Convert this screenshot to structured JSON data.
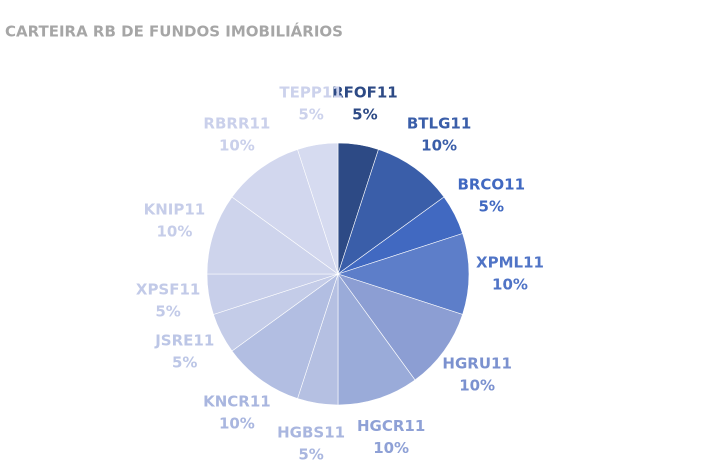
{
  "chart_data": {
    "type": "pie",
    "title": "CARTEIRA RB DE FUNDOS IMOBILIÁRIOS",
    "categories": [
      "RFOF11",
      "BTLG11",
      "BRCO11",
      "XPML11",
      "HGRU11",
      "HGCR11",
      "HGBS11",
      "KNCR11",
      "JSRE11",
      "XPSF11",
      "KNIP11",
      "RBRR11",
      "TEPP11"
    ],
    "values": [
      5,
      10,
      5,
      10,
      10,
      10,
      5,
      10,
      5,
      5,
      10,
      10,
      5
    ],
    "value_labels": [
      "5%",
      "10%",
      "5%",
      "10%",
      "10%",
      "10%",
      "5%",
      "10%",
      "5%",
      "5%",
      "10%",
      "10%",
      "5%"
    ],
    "colors": [
      "#2d4a85",
      "#3a5ea9",
      "#4169c1",
      "#5d7ec9",
      "#8c9ed3",
      "#9aabd9",
      "#b5c0e2",
      "#b2bee2",
      "#c4cce8",
      "#c8cfea",
      "#ced4ec",
      "#d2d7ee",
      "#d6dbf0"
    ],
    "label_colors": [
      "#2d4a85",
      "#3a5ea9",
      "#4169c1",
      "#5074c6",
      "#7b91cf",
      "#8fa1d6",
      "#a9b6df",
      "#a9b6df",
      "#bcc6e6",
      "#c2cae8",
      "#c6cde9",
      "#cad0eb",
      "#ccd2ec"
    ]
  }
}
